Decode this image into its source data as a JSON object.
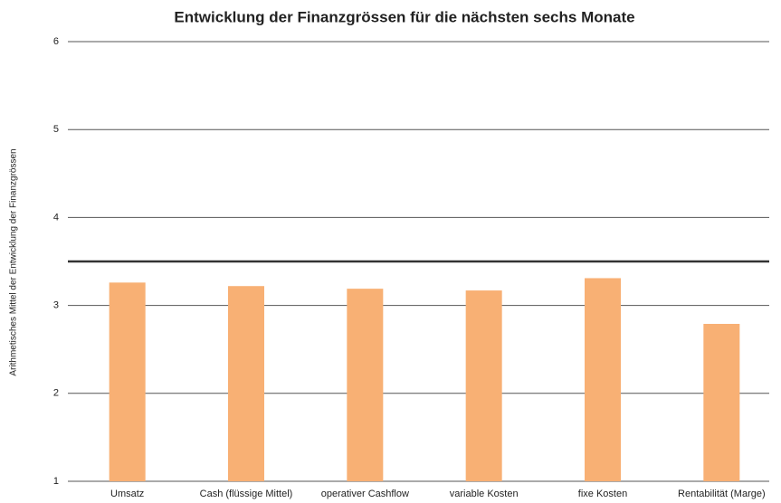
{
  "chart_data": {
    "type": "bar",
    "title": "Entwicklung der Finanzgrössen für die nächsten sechs Monate",
    "y_label": "Arithmetisches Mittel der Entwicklung der Finanzgrössen",
    "categories": [
      "Umsatz",
      "Cash (flüssige Mittel)",
      "operativer Cashflow",
      "variable Kosten",
      "fixe Kosten",
      "Rentabilität (Marge)"
    ],
    "values": [
      3.26,
      3.22,
      3.19,
      3.17,
      3.31,
      2.79
    ],
    "color": "#f8b074",
    "reference_line": 3.5,
    "ylim": [
      1,
      6
    ],
    "yticks": [
      1,
      2,
      3,
      4,
      5,
      6
    ],
    "grid": true
  }
}
